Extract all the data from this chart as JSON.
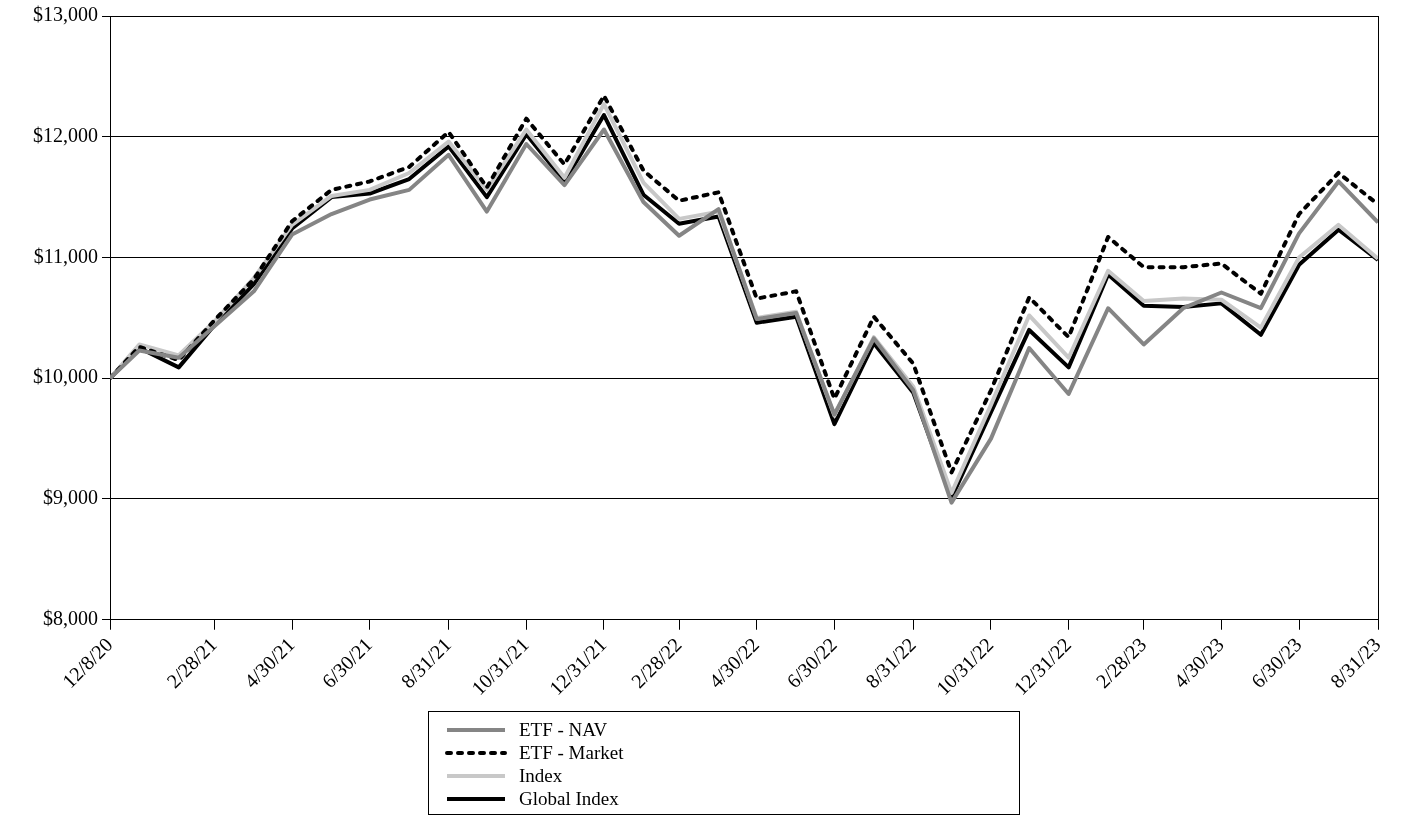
{
  "chart_data": {
    "type": "line",
    "x": [
      "2020-12-08",
      "2020-12-31",
      "2021-01-31",
      "2021-02-28",
      "2021-03-31",
      "2021-04-30",
      "2021-05-31",
      "2021-06-30",
      "2021-07-31",
      "2021-08-31",
      "2021-09-30",
      "2021-10-31",
      "2021-11-30",
      "2021-12-31",
      "2022-01-31",
      "2022-02-28",
      "2022-03-31",
      "2022-04-30",
      "2022-05-31",
      "2022-06-30",
      "2022-07-31",
      "2022-08-31",
      "2022-09-30",
      "2022-10-31",
      "2022-11-30",
      "2022-12-31",
      "2023-01-31",
      "2023-02-28",
      "2023-03-31",
      "2023-04-30",
      "2023-05-31",
      "2023-06-30",
      "2023-07-31",
      "2023-08-31"
    ],
    "series": [
      {
        "name": "ETF - NAV",
        "color": "#858585",
        "values": [
          10000,
          10230,
          10170,
          10430,
          10720,
          11190,
          11360,
          11480,
          11560,
          11850,
          11380,
          11940,
          11600,
          12060,
          11460,
          11180,
          11400,
          10490,
          10540,
          9700,
          10330,
          9900,
          8970,
          9500,
          10250,
          9870,
          10580,
          10280,
          10580,
          10710,
          10580,
          11200,
          11630,
          11290
        ]
      },
      {
        "name": "ETF - Market",
        "color": "#000000",
        "line_style": "dotted",
        "values": [
          10000,
          10260,
          10150,
          10480,
          10820,
          11300,
          11560,
          11630,
          11750,
          12040,
          11580,
          12150,
          11770,
          12340,
          11720,
          11470,
          11540,
          10660,
          10720,
          9830,
          10510,
          10120,
          9220,
          9900,
          10670,
          10340,
          11170,
          10920,
          10920,
          10950,
          10700,
          11360,
          11700,
          11440
        ]
      },
      {
        "name": "Index",
        "color": "#c8c8c8",
        "values": [
          10000,
          10280,
          10190,
          10470,
          10830,
          11270,
          11510,
          11560,
          11700,
          11960,
          11560,
          12060,
          11660,
          12270,
          11620,
          11320,
          11380,
          10500,
          10550,
          9690,
          10340,
          9930,
          9050,
          9780,
          10520,
          10170,
          10890,
          10640,
          10660,
          10650,
          10420,
          11000,
          11270,
          10990
        ]
      },
      {
        "name": "Global Index",
        "color": "#000000",
        "values": [
          10000,
          10250,
          10090,
          10440,
          10780,
          11240,
          11500,
          11530,
          11650,
          11920,
          11500,
          12020,
          11630,
          12180,
          11520,
          11280,
          11340,
          10460,
          10510,
          9620,
          10290,
          9880,
          9010,
          9720,
          10400,
          10090,
          10860,
          10600,
          10590,
          10620,
          10360,
          10940,
          11230,
          10980
        ]
      }
    ],
    "xlim": [
      "2020-12-08",
      "2023-08-31"
    ],
    "xticks": [
      {
        "value": "2020-12-08",
        "label": "12/8/20"
      },
      {
        "value": "2021-02-28",
        "label": "2/28/21"
      },
      {
        "value": "2021-04-30",
        "label": "4/30/21"
      },
      {
        "value": "2021-06-30",
        "label": "6/30/21"
      },
      {
        "value": "2021-08-31",
        "label": "8/31/21"
      },
      {
        "value": "2021-10-31",
        "label": "10/31/21"
      },
      {
        "value": "2021-12-31",
        "label": "12/31/21"
      },
      {
        "value": "2022-02-28",
        "label": "2/28/22"
      },
      {
        "value": "2022-04-30",
        "label": "4/30/22"
      },
      {
        "value": "2022-06-30",
        "label": "6/30/22"
      },
      {
        "value": "2022-08-31",
        "label": "8/31/22"
      },
      {
        "value": "2022-10-31",
        "label": "10/31/22"
      },
      {
        "value": "2022-12-31",
        "label": "12/31/22"
      },
      {
        "value": "2023-02-28",
        "label": "2/28/23"
      },
      {
        "value": "2023-04-30",
        "label": "4/30/23"
      },
      {
        "value": "2023-06-30",
        "label": "6/30/23"
      },
      {
        "value": "2023-08-31",
        "label": "8/31/23"
      }
    ],
    "ylim": [
      8000,
      13000
    ],
    "yticks": [
      {
        "value": 8000,
        "label": "$8,000"
      },
      {
        "value": 9000,
        "label": "$9,000"
      },
      {
        "value": 10000,
        "label": "$10,000"
      },
      {
        "value": 11000,
        "label": "$11,000"
      },
      {
        "value": 12000,
        "label": "$12,000"
      },
      {
        "value": 13000,
        "label": "$13,000"
      }
    ],
    "grid": "y",
    "legend": "bottom"
  }
}
